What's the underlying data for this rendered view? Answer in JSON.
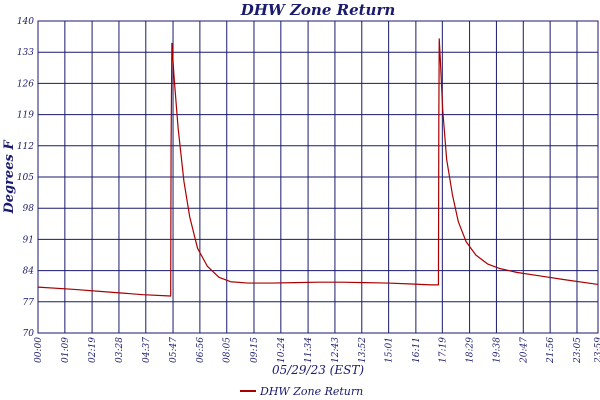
{
  "chart_data": {
    "type": "line",
    "title": "DHW Zone Return",
    "xlabel": "05/29/23 (EST)",
    "ylabel": "Degrees F",
    "ylim": [
      70,
      140
    ],
    "yticks": [
      70,
      77,
      84,
      91,
      98,
      105,
      112,
      119,
      126,
      133,
      140
    ],
    "xlim": [
      "00:00",
      "23:59"
    ],
    "xtick_labels": [
      "00:00",
      "01:09",
      "02:19",
      "03:28",
      "04:37",
      "05:47",
      "06:56",
      "08:05",
      "09:15",
      "10:24",
      "11:34",
      "12:43",
      "13:52",
      "15:01",
      "16:11",
      "17:19",
      "18:29",
      "19:38",
      "20:47",
      "21:56",
      "23:05",
      "23:59"
    ],
    "grid": true,
    "legend_position": "bottom-center",
    "colors": {
      "series": "#aa0000",
      "grid": "#1a1a6e",
      "text": "#1a1a6e"
    },
    "series": [
      {
        "name": "DHW Zone Return",
        "x": [
          "00:00",
          "01:30",
          "03:00",
          "04:30",
          "05:40",
          "05:41",
          "05:42",
          "05:44",
          "05:50",
          "06:00",
          "06:15",
          "06:30",
          "06:50",
          "07:15",
          "07:45",
          "08:15",
          "09:00",
          "10:00",
          "11:00",
          "12:00",
          "13:00",
          "14:00",
          "15:00",
          "16:00",
          "16:50",
          "17:09",
          "17:10",
          "17:11",
          "17:14",
          "17:20",
          "17:30",
          "17:45",
          "18:00",
          "18:20",
          "18:45",
          "19:15",
          "19:45",
          "20:30",
          "21:30",
          "22:30",
          "23:59"
        ],
        "y": [
          80.3,
          79.8,
          79.2,
          78.6,
          78.3,
          78.3,
          112,
          135,
          127,
          116,
          104,
          96,
          89,
          85,
          82.5,
          81.5,
          81.2,
          81.2,
          81.3,
          81.4,
          81.4,
          81.3,
          81.2,
          81.0,
          80.8,
          80.8,
          118,
          136,
          131,
          120,
          109,
          101,
          95,
          90.5,
          87.5,
          85.5,
          84.5,
          83.6,
          82.8,
          82.0,
          80.9
        ]
      }
    ]
  }
}
